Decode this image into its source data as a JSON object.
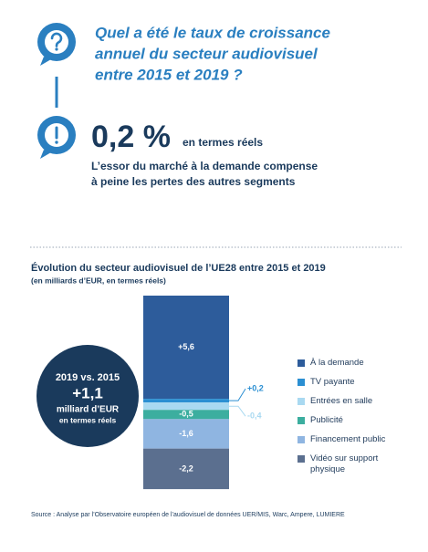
{
  "infographic": {
    "question": [
      "Quel a été le taux de croissance",
      "annuel du secteur audiovisuel",
      "entre 2015 et 2019 ?"
    ],
    "answer": "0,2 %",
    "answer_note": "en termes réels",
    "explanation": [
      "L’essor du marché à la demande compense",
      "à peine les pertes des autres segments"
    ],
    "badge": [
      "2019 vs. 2015",
      "+1,1",
      "milliard d’EUR",
      "en termes réels"
    ],
    "source": "Source : Analyse par l’Observatoire européen de l’audiovisuel de données UER/MIS, Warc, Ampere, LUMIERE"
  },
  "chart_data": {
    "type": "waterfall",
    "title": "Évolution du secteur audiovisuel de l’UE28 entre 2015 et 2019",
    "subtitle": "(en milliards d’EUR, en termes réels)",
    "series": [
      {
        "name": "À la demande",
        "color": "#2d5c9b",
        "values": [
          5.6
        ],
        "value_labels": [
          "+5,6"
        ]
      },
      {
        "name": "TV payante",
        "color": "#2b8fd2",
        "values": [
          0.2
        ],
        "value_labels": [
          "+0,2"
        ]
      },
      {
        "name": "Entrées en salle",
        "color": "#a9d9f1",
        "values": [
          -0.4
        ],
        "value_labels": [
          "-0,4"
        ]
      },
      {
        "name": "Publicité",
        "color": "#3cae9f",
        "values": [
          -0.5
        ],
        "value_labels": [
          "-0,5"
        ]
      },
      {
        "name": "Financement public",
        "color": "#8fb5e1",
        "values": [
          -1.6
        ],
        "value_labels": [
          "-1,6"
        ]
      },
      {
        "name": "Vidéo sur support physique",
        "color": "#5b6f8f",
        "values": [
          -2.2
        ],
        "value_labels": [
          "-2,2"
        ]
      }
    ]
  }
}
